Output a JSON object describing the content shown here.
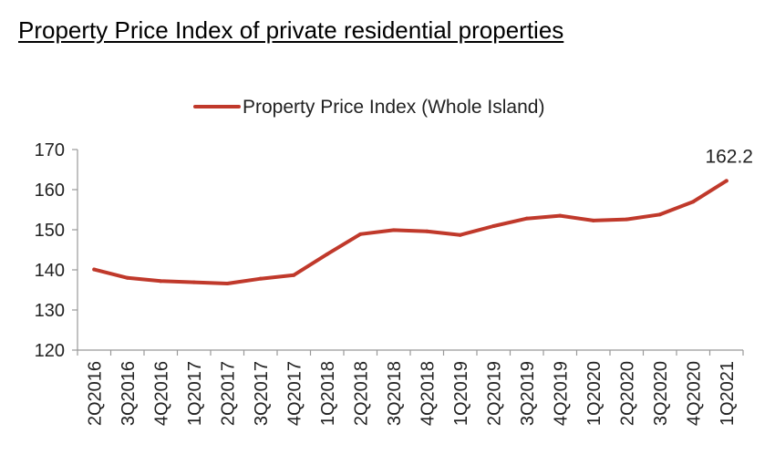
{
  "page": {
    "title": "Property Price Index of private residential properties"
  },
  "chart_data": {
    "type": "line",
    "title": "",
    "xlabel": "",
    "ylabel": "",
    "ylim": [
      120,
      170
    ],
    "yticks": [
      120,
      130,
      140,
      150,
      160,
      170
    ],
    "grid": false,
    "legend_position": "top-center",
    "categories": [
      "2Q2016",
      "3Q2016",
      "4Q2016",
      "1Q2017",
      "2Q2017",
      "3Q2017",
      "4Q2017",
      "1Q2018",
      "2Q2018",
      "3Q2018",
      "4Q2018",
      "1Q2019",
      "2Q2019",
      "3Q2019",
      "4Q2019",
      "1Q2020",
      "2Q2020",
      "3Q2020",
      "4Q2020",
      "1Q2021"
    ],
    "series": [
      {
        "name": "Property Price Index (Whole Island)",
        "color": "#c0392b",
        "values": [
          140.1,
          138.0,
          137.2,
          136.9,
          136.6,
          137.8,
          138.7,
          143.9,
          148.9,
          149.9,
          149.6,
          148.7,
          150.9,
          152.8,
          153.5,
          152.3,
          152.6,
          153.8,
          157.0,
          162.2
        ]
      }
    ],
    "annotations": [
      {
        "category": "1Q2021",
        "text": "162.2"
      }
    ]
  }
}
